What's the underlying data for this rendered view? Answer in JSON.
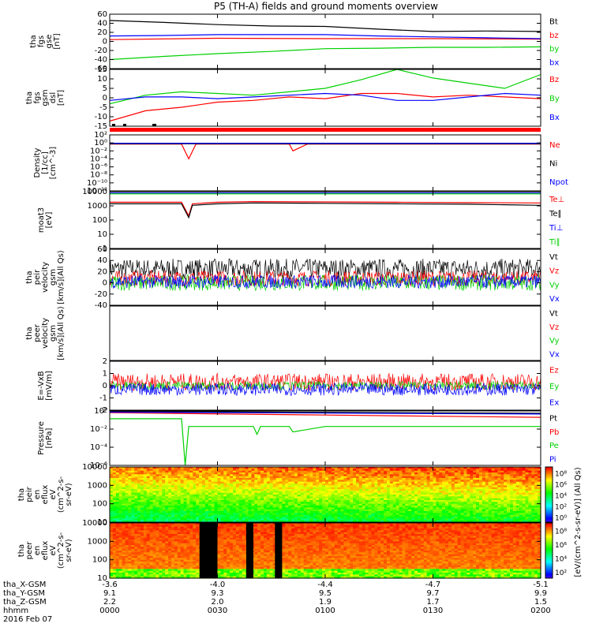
{
  "title": "P5 (TH-A) fields and ground moments overview",
  "colors": {
    "black": "#000000",
    "red": "#ff0000",
    "green": "#00d000",
    "blue": "#0000ff"
  },
  "chart_data": [
    {
      "type": "line",
      "id": "fgs_gse",
      "ylabel": [
        "tha",
        "fgs",
        "gse",
        "[nT]"
      ],
      "ylim": [
        -60,
        60
      ],
      "yticks": [
        "60",
        "40",
        "20",
        "0",
        "-20",
        "-40",
        "-60"
      ],
      "series": [
        {
          "name": "Bt",
          "color": "black",
          "x": [
            0,
            15,
            30,
            45,
            60,
            75,
            90,
            105,
            120
          ],
          "values": [
            46,
            42,
            37,
            34,
            33,
            27,
            22,
            23,
            22
          ]
        },
        {
          "name": "bz",
          "color": "red",
          "x": [
            0,
            30,
            60,
            90,
            120
          ],
          "values": [
            4,
            7,
            6,
            6,
            5
          ]
        },
        {
          "name": "by",
          "color": "green",
          "x": [
            0,
            15,
            30,
            45,
            60,
            75,
            90,
            105,
            120
          ],
          "values": [
            -40,
            -33,
            -27,
            -22,
            -16,
            -15,
            -13,
            -13,
            -12
          ]
        },
        {
          "name": "bx",
          "color": "blue",
          "x": [
            0,
            15,
            30,
            45,
            60,
            75,
            90,
            105,
            120
          ],
          "values": [
            12,
            13,
            15,
            15,
            15,
            12,
            10,
            8,
            6
          ]
        }
      ]
    },
    {
      "type": "line",
      "id": "fgs_gsm",
      "ylabel": [
        "tha",
        "fgs",
        "gsm",
        "dsl",
        "[nT]"
      ],
      "ylim": [
        -18,
        15
      ],
      "yticks": [
        "15",
        "10",
        "5",
        "0",
        "-5",
        "-10",
        "-15"
      ],
      "series": [
        {
          "name": "Bz",
          "color": "red",
          "x": [
            0,
            10,
            20,
            30,
            40,
            50,
            60,
            70,
            80,
            90,
            100,
            110,
            120
          ],
          "values": [
            -15,
            -9,
            -7,
            -4,
            -3,
            -1,
            -2,
            1,
            1,
            -1,
            0,
            -1,
            -2
          ]
        },
        {
          "name": "By",
          "color": "green",
          "x": [
            0,
            10,
            20,
            30,
            40,
            50,
            60,
            70,
            80,
            90,
            100,
            110,
            120
          ],
          "values": [
            -5,
            0,
            2,
            1,
            0,
            2,
            4,
            9,
            15,
            10,
            7,
            4,
            12
          ]
        },
        {
          "name": "Bx",
          "color": "blue",
          "x": [
            0,
            10,
            20,
            30,
            40,
            50,
            60,
            70,
            80,
            90,
            100,
            110,
            120
          ],
          "values": [
            -3,
            -1,
            -1,
            -2,
            -1,
            0,
            1,
            0,
            -3,
            -3,
            -1,
            1,
            0
          ]
        }
      ]
    },
    {
      "type": "line",
      "id": "density",
      "ylabel": [
        "Density",
        "[1/cc]",
        "[cm^-3]"
      ],
      "yscale": "log",
      "ylim": [
        1e-12,
        100
      ],
      "yticks": [
        "10²",
        "10⁰",
        "10⁻²",
        "10⁻⁴",
        "10⁻⁶",
        "10⁻⁸",
        "10⁻¹⁰",
        "10⁻¹²"
      ],
      "series": [
        {
          "name": "Ne",
          "color": "red",
          "x": [
            0,
            20,
            22,
            24,
            40,
            50,
            51,
            55,
            60,
            120
          ],
          "values": [
            0.5,
            0.5,
            0.0001,
            0.5,
            0.5,
            0.5,
            0.01,
            0.5,
            0.5,
            0.5
          ]
        },
        {
          "name": "Ni",
          "color": "black",
          "x": [
            0,
            120
          ],
          "values": [
            0.6,
            0.6
          ]
        },
        {
          "name": "Npot",
          "color": "blue",
          "x": [
            0,
            120
          ],
          "values": [
            0.8,
            0.8
          ]
        }
      ]
    },
    {
      "type": "line",
      "id": "temp",
      "ylabel": [
        "moat3",
        "[eV]"
      ],
      "yscale": "log",
      "ylim": [
        1,
        10000
      ],
      "yticks": [
        "10000",
        "1000",
        "100",
        "10",
        "1"
      ],
      "series": [
        {
          "name": "Te⊥",
          "color": "red",
          "x": [
            0,
            20,
            22,
            23,
            30,
            40,
            60,
            80,
            100,
            120
          ],
          "values": [
            1800,
            1800,
            200,
            1400,
            1800,
            2000,
            1900,
            1800,
            1700,
            1600
          ]
        },
        {
          "name": "Te∥",
          "color": "black",
          "x": [
            0,
            20,
            22,
            23,
            30,
            40,
            60,
            80,
            100,
            120
          ],
          "values": [
            1400,
            1400,
            150,
            1100,
            1400,
            1600,
            1500,
            1400,
            1300,
            1100
          ]
        },
        {
          "name": "Ti⊥",
          "color": "blue",
          "x": [
            0,
            120
          ],
          "values": [
            8000,
            8000
          ]
        },
        {
          "name": "Ti∥",
          "color": "green",
          "x": [
            0,
            120
          ],
          "values": [
            7000,
            7000
          ]
        }
      ]
    },
    {
      "type": "line",
      "id": "peir_vel",
      "ylabel": [
        "tha",
        "peir",
        "velocity",
        "gsm",
        "[km/s](All Qs)"
      ],
      "ylim": [
        -40,
        60
      ],
      "yticks": [
        "60",
        "40",
        "20",
        "0",
        "-20",
        "-40"
      ],
      "series": [
        {
          "name": "Vt",
          "color": "black",
          "mean": 25,
          "spread": 18
        },
        {
          "name": "Vz",
          "color": "red",
          "mean": 8,
          "spread": 14
        },
        {
          "name": "Vy",
          "color": "green",
          "mean": 0,
          "spread": 14
        },
        {
          "name": "Vx",
          "color": "blue",
          "mean": 2,
          "spread": 12
        }
      ]
    },
    {
      "type": "line",
      "id": "peer_vel",
      "ylabel": [
        "tha",
        "peer",
        "velocity",
        "gsm",
        "[km/s](All Qs)"
      ],
      "series": [
        {
          "name": "Vt",
          "color": "black"
        },
        {
          "name": "Vz",
          "color": "red"
        },
        {
          "name": "Vy",
          "color": "green"
        },
        {
          "name": "Vx",
          "color": "blue"
        }
      ]
    },
    {
      "type": "line",
      "id": "efield",
      "ylabel": [
        "E=-VxB",
        "[mV/m]"
      ],
      "ylim": [
        -2,
        2
      ],
      "yticks": [
        "2",
        "1",
        "0",
        "-1",
        "-2"
      ],
      "series": [
        {
          "name": "Ez",
          "color": "red",
          "mean": 0.3,
          "spread": 0.7
        },
        {
          "name": "Ey",
          "color": "green",
          "mean": 0.0,
          "spread": 0.35
        },
        {
          "name": "Ex",
          "color": "blue",
          "mean": -0.3,
          "spread": 0.5
        }
      ]
    },
    {
      "type": "line",
      "id": "pressure",
      "ylabel": [
        "Pressure",
        "[nPa]"
      ],
      "yscale": "log",
      "ylim": [
        1e-07,
        1
      ],
      "yticks": [
        "10⁰",
        "10⁻²",
        "10⁻⁴",
        "10⁻⁶"
      ],
      "series": [
        {
          "name": "Pt",
          "color": "black",
          "x": [
            0,
            120
          ],
          "values": [
            0.9,
            0.5
          ]
        },
        {
          "name": "Pb",
          "color": "red",
          "x": [
            0,
            60,
            120
          ],
          "values": [
            0.6,
            0.3,
            0.15
          ]
        },
        {
          "name": "Pe",
          "color": "green",
          "x": [
            0,
            20,
            21,
            22,
            40,
            41,
            42,
            50,
            51,
            60,
            120
          ],
          "values": [
            0.1,
            0.1,
            1e-07,
            0.01,
            0.01,
            0.001,
            0.01,
            0.01,
            0.002,
            0.01,
            0.01
          ]
        },
        {
          "name": "Pi",
          "color": "blue",
          "x": [
            0,
            120
          ],
          "values": [
            0.7,
            0.4
          ]
        }
      ]
    },
    {
      "type": "heatmap",
      "id": "peir_spec",
      "ylabel": [
        "tha",
        "peir",
        "en",
        "eflux",
        "eV",
        "(cm^2-s-",
        "sr-eV)"
      ],
      "yscale": "log",
      "ylim": [
        5,
        20000
      ],
      "yticks": [
        "10000",
        "1000",
        "100",
        "10"
      ]
    },
    {
      "type": "heatmap",
      "id": "peer_spec",
      "ylabel": [
        "tha",
        "peer",
        "en",
        "eflux",
        "eV",
        "(cm^2-s-",
        "sr-eV)"
      ],
      "yscale": "log",
      "ylim": [
        5,
        20000
      ],
      "yticks": [
        "10000",
        "1000",
        "100",
        "10"
      ]
    }
  ],
  "colorbar": {
    "label": "[eV/(cm^2-s-sr-eV)] (All Qs)",
    "ticks_upper": [
      "10⁸",
      "10⁶",
      "10⁴",
      "10²",
      "10⁰"
    ],
    "ticks_lower": [
      "10⁸",
      "10⁶",
      "10⁴",
      "10²"
    ]
  },
  "xaxis": {
    "labels": [
      "tha_X-GSM",
      "tha_Y-GSM",
      "tha_Z-GSM",
      "hhmm",
      "2016 Feb 07"
    ],
    "ticks": [
      {
        "pos": 0,
        "x": "-3.6",
        "y": "9.1",
        "z": "2.2",
        "t": "0000"
      },
      {
        "pos": 30,
        "x": "-4.0",
        "y": "9.3",
        "z": "2.0",
        "t": "0030"
      },
      {
        "pos": 60,
        "x": "-4.4",
        "y": "9.5",
        "z": "1.9",
        "t": "0100"
      },
      {
        "pos": 90,
        "x": "-4.7",
        "y": "9.7",
        "z": "1.7",
        "t": "0130"
      },
      {
        "pos": 120,
        "x": "-5.1",
        "y": "9.9",
        "z": "1.5",
        "t": "0200"
      }
    ]
  }
}
